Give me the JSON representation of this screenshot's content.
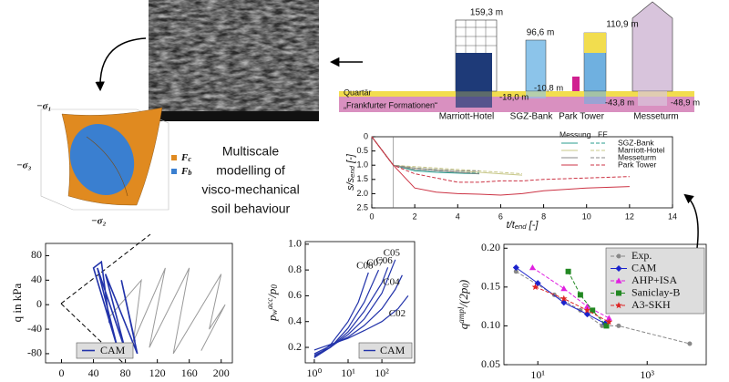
{
  "caption": [
    "Multiscale",
    "modelling of",
    "visco-mechanical",
    "soil behaviour"
  ],
  "yield_surface": {
    "axes": [
      "−σ₁",
      "−σ₃",
      "−σ₂"
    ],
    "legend": [
      {
        "base": "F",
        "sub": "c",
        "color": "#e08a20"
      },
      {
        "base": "F",
        "sub": "b",
        "color": "#3a7fd0"
      }
    ]
  },
  "buildings": {
    "names": [
      "Marriott-Hotel",
      "SGZ-Bank",
      "Park Tower",
      "Messeturm"
    ],
    "heights": [
      "159,3 m",
      "96,6 m",
      "110,9 m"
    ],
    "depths": [
      "-18,0 m",
      "-10,8 m",
      "-43,8 m",
      "-48,9 m"
    ],
    "layers": [
      "Quartär",
      "„Frankfurter Formationen“"
    ]
  },
  "chart_data": [
    {
      "type": "line",
      "xlabel": [
        {
          "text": "t/t"
        },
        {
          "text": "end",
          "shift": "sub"
        },
        {
          "text": " [-]"
        }
      ],
      "ylabel": [
        {
          "text": "s/s"
        },
        {
          "text": "end",
          "shift": "sub"
        },
        {
          "text": " [-]"
        }
      ],
      "xlim": [
        0,
        14
      ],
      "xticks": [
        0,
        2,
        4,
        6,
        8,
        10,
        12,
        14
      ],
      "ylim": [
        0,
        2.5
      ],
      "y_inverted": true,
      "yticks": [
        0,
        0.5,
        {
          "value": 1,
          "label": "1.0"
        },
        1.5,
        {
          "value": 2,
          "label": "2.0"
        },
        2.5
      ],
      "legend_header": [
        "Messung",
        "FE"
      ],
      "x": [
        0,
        0.5,
        1,
        2,
        3,
        4,
        5,
        6,
        7,
        8,
        10,
        12
      ],
      "series": [
        {
          "name": "SGZ-Bank",
          "color": "#2a9d8f",
          "values": [
            0,
            0.5,
            1.0,
            1.2,
            1.25,
            1.28,
            1.3,
            null,
            null,
            null,
            null,
            null
          ],
          "fe_values": [
            0,
            0.5,
            1.0,
            1.15,
            1.2,
            1.25,
            1.28,
            null,
            null,
            null,
            null,
            null
          ]
        },
        {
          "name": "Marriott-Hotel",
          "color": "#c8c88a",
          "values": [
            0,
            0.5,
            1.0,
            1.1,
            1.15,
            1.2,
            1.25,
            1.3,
            1.35,
            null,
            null,
            null
          ],
          "fe_values": [
            0,
            0.5,
            1.0,
            1.05,
            1.1,
            1.15,
            1.2,
            1.25,
            1.3,
            null,
            null,
            null
          ]
        },
        {
          "name": "Messeturm",
          "color": "#888888",
          "values": [
            0,
            0.5,
            1.0,
            1.15,
            1.2,
            1.25,
            1.3,
            null,
            null,
            null,
            null,
            null
          ],
          "fe_values": [
            0,
            0.5,
            1.0,
            1.1,
            1.15,
            1.2,
            1.2,
            null,
            null,
            null,
            null,
            null
          ]
        },
        {
          "name": "Park Tower",
          "color": "#cc3344",
          "values": [
            0,
            0.5,
            1.0,
            1.8,
            1.95,
            2.0,
            2.02,
            2.05,
            2.0,
            1.9,
            1.8,
            1.75
          ],
          "fe_values": [
            0,
            0.5,
            1.0,
            1.3,
            1.45,
            1.6,
            1.6,
            1.55,
            1.55,
            1.5,
            1.45,
            1.4
          ]
        }
      ]
    },
    {
      "type": "line",
      "ylabel": "q in kPa",
      "xlim": [
        -20,
        214
      ],
      "xticks": [
        0,
        40,
        80,
        120,
        160,
        200
      ],
      "ylim": [
        -95,
        100
      ],
      "yticks": [
        -80,
        -40,
        0,
        40,
        80
      ],
      "series": [
        {
          "color": "#999999",
          "x": [
            60,
            100,
            90,
            130,
            110,
            160,
            140,
            200,
            185,
            205,
            175
          ],
          "values": [
            -20,
            40,
            -60,
            60,
            -70,
            60,
            -80,
            50,
            -40,
            0,
            -75
          ]
        },
        {
          "name": "CAM",
          "color": "#2233aa",
          "x": [
            60,
            50,
            40,
            70,
            45,
            80,
            55,
            95,
            75,
            92
          ],
          "values": [
            -30,
            70,
            60,
            -70,
            60,
            -75,
            50,
            -80,
            40,
            -60
          ]
        }
      ]
    },
    {
      "type": "line",
      "log_x": true,
      "ylabel": [
        {
          "text": "p"
        },
        {
          "text": "w",
          "shift": "sub"
        },
        {
          "text": "acc",
          "shift": "sup"
        },
        {
          "text": "/p"
        },
        {
          "text": "0",
          "shift": "sub"
        }
      ],
      "xlim": [
        0.54,
        930
      ],
      "xticks": [
        {
          "value": 1,
          "label": "10⁰"
        },
        {
          "value": 10,
          "label": "10¹"
        },
        {
          "value": 100,
          "label": "10²"
        }
      ],
      "ylim": [
        0.08,
        1.02
      ],
      "yticks": [
        0.2,
        0.4,
        0.6,
        0.8,
        {
          "value": 1,
          "label": "1.0"
        }
      ],
      "legend": "CAM",
      "series": [
        {
          "label": "C08",
          "color": "#2233aa",
          "x": [
            1,
            3,
            10,
            20,
            40
          ],
          "values": [
            0.12,
            0.22,
            0.4,
            0.55,
            0.78
          ]
        },
        {
          "label": "C07",
          "color": "#2233aa",
          "x": [
            1,
            3,
            10,
            30,
            80
          ],
          "values": [
            0.12,
            0.2,
            0.35,
            0.55,
            0.8
          ]
        },
        {
          "label": "C06",
          "color": "#2233aa",
          "x": [
            1,
            3,
            10,
            30,
            100,
            150
          ],
          "values": [
            0.13,
            0.2,
            0.32,
            0.48,
            0.7,
            0.82
          ]
        },
        {
          "label": "C05",
          "color": "#2233aa",
          "x": [
            1,
            3,
            10,
            30,
            100,
            250
          ],
          "values": [
            0.14,
            0.2,
            0.3,
            0.42,
            0.62,
            0.88
          ]
        },
        {
          "label": "C04",
          "color": "#2233aa",
          "x": [
            1,
            10,
            30,
            100,
            250,
            400
          ],
          "values": [
            0.15,
            0.28,
            0.37,
            0.5,
            0.65,
            0.76
          ]
        },
        {
          "label": "C02",
          "color": "#2233aa",
          "x": [
            1,
            10,
            30,
            100,
            300,
            600
          ],
          "values": [
            0.18,
            0.27,
            0.33,
            0.4,
            0.5,
            0.6
          ]
        }
      ]
    },
    {
      "type": "scatter",
      "log_x": true,
      "ylabel": [
        {
          "text": "q"
        },
        {
          "text": "ampl",
          "shift": "sup"
        },
        {
          "text": "/(2p"
        },
        {
          "text": "0",
          "shift": "sub"
        },
        {
          "text": ")"
        }
      ],
      "xlim": [
        2.4,
        12000
      ],
      "xticks": [
        {
          "value": 10,
          "label": "10¹"
        },
        {
          "value": 1000,
          "label": "10³"
        }
      ],
      "ylim": [
        0.05,
        0.205
      ],
      "yticks": [
        0.05,
        {
          "value": 0.1,
          "label": "0.10"
        },
        0.15,
        {
          "value": 0.2,
          "label": "0.20"
        }
      ],
      "series": [
        {
          "name": "Exp.",
          "color": "#888888",
          "marker": "circle",
          "line": "dashed",
          "x": [
            4,
            20,
            60,
            150,
            300,
            6000
          ],
          "values": [
            0.17,
            0.14,
            0.12,
            0.1,
            0.1,
            0.077
          ]
        },
        {
          "name": "CAM",
          "color": "#1a22cc",
          "marker": "diamond",
          "line": "solid",
          "x": [
            4,
            10,
            30,
            80,
            170
          ],
          "values": [
            0.175,
            0.155,
            0.13,
            0.115,
            0.103
          ]
        },
        {
          "name": "AHP+ISA",
          "color": "#e020e0",
          "marker": "triangle",
          "line": "dashed",
          "x": [
            8,
            30,
            80,
            200
          ],
          "values": [
            0.175,
            0.148,
            0.125,
            0.11
          ]
        },
        {
          "name": "Saniclay-B",
          "color": "#228822",
          "marker": "square",
          "line": "dashed",
          "x": [
            36,
            60,
            100,
            180
          ],
          "values": [
            0.17,
            0.14,
            0.12,
            0.1
          ]
        },
        {
          "name": "A3-SKH",
          "color": "#dd2222",
          "marker": "star",
          "line": "dashed",
          "x": [
            9,
            30,
            80,
            200
          ],
          "values": [
            0.15,
            0.135,
            0.12,
            0.105
          ]
        }
      ]
    }
  ]
}
